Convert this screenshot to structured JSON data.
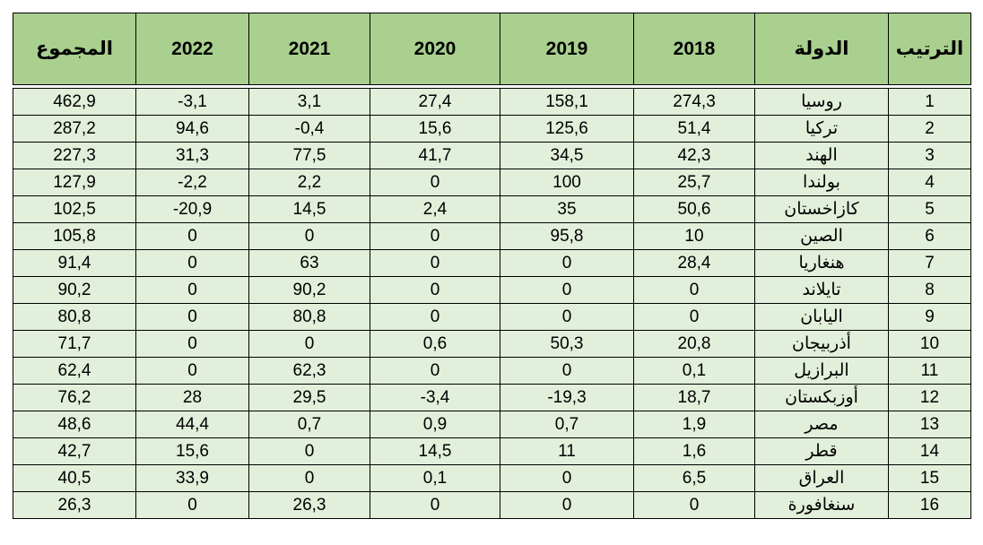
{
  "colors": {
    "page_bg": "#FFFFFF",
    "header_bg": "#A9D08E",
    "row_bg": "#E2EFDA",
    "border": "#000000",
    "text": "#000000"
  },
  "chart_data": {
    "type": "table",
    "direction": "rtl",
    "decimal_separator": ",",
    "columns": [
      {
        "key": "rank",
        "label": "الترتيب"
      },
      {
        "key": "country",
        "label": "الدولة"
      },
      {
        "key": "y2018",
        "label": "2018"
      },
      {
        "key": "y2019",
        "label": "2019"
      },
      {
        "key": "y2020",
        "label": "2020"
      },
      {
        "key": "y2021",
        "label": "2021"
      },
      {
        "key": "y2022",
        "label": "2022"
      },
      {
        "key": "total",
        "label": "المجموع"
      }
    ],
    "rows": [
      {
        "rank": "1",
        "country": "روسيا",
        "y2018": "274,3",
        "y2019": "158,1",
        "y2020": "27,4",
        "y2021": "3,1",
        "y2022": "-3,1",
        "total": "462,9"
      },
      {
        "rank": "2",
        "country": "تركيا",
        "y2018": "51,4",
        "y2019": "125,6",
        "y2020": "15,6",
        "y2021": "-0,4",
        "y2022": "94,6",
        "total": "287,2"
      },
      {
        "rank": "3",
        "country": "الهند",
        "y2018": "42,3",
        "y2019": "34,5",
        "y2020": "41,7",
        "y2021": "77,5",
        "y2022": "31,3",
        "total": "227,3"
      },
      {
        "rank": "4",
        "country": "بولندا",
        "y2018": "25,7",
        "y2019": "100",
        "y2020": "0",
        "y2021": "2,2",
        "y2022": "-2,2",
        "total": "127,9"
      },
      {
        "rank": "5",
        "country": "كازاخستان",
        "y2018": "50,6",
        "y2019": "35",
        "y2020": "2,4",
        "y2021": "14,5",
        "y2022": "-20,9",
        "total": "102,5"
      },
      {
        "rank": "6",
        "country": "الصين",
        "y2018": "10",
        "y2019": "95,8",
        "y2020": "0",
        "y2021": "0",
        "y2022": "0",
        "total": "105,8"
      },
      {
        "rank": "7",
        "country": "هنغاريا",
        "y2018": "28,4",
        "y2019": "0",
        "y2020": "0",
        "y2021": "63",
        "y2022": "0",
        "total": "91,4"
      },
      {
        "rank": "8",
        "country": "تايلاند",
        "y2018": "0",
        "y2019": "0",
        "y2020": "0",
        "y2021": "90,2",
        "y2022": "0",
        "total": "90,2"
      },
      {
        "rank": "9",
        "country": "اليابان",
        "y2018": "0",
        "y2019": "0",
        "y2020": "0",
        "y2021": "80,8",
        "y2022": "0",
        "total": "80,8"
      },
      {
        "rank": "10",
        "country": "أذربيجان",
        "y2018": "20,8",
        "y2019": "50,3",
        "y2020": "0,6",
        "y2021": "0",
        "y2022": "0",
        "total": "71,7"
      },
      {
        "rank": "11",
        "country": "البرازيل",
        "y2018": "0,1",
        "y2019": "0",
        "y2020": "0",
        "y2021": "62,3",
        "y2022": "0",
        "total": "62,4"
      },
      {
        "rank": "12",
        "country": "أوزبكستان",
        "y2018": "18,7",
        "y2019": "-19,3",
        "y2020": "-3,4",
        "y2021": "29,5",
        "y2022": "28",
        "total": "76,2"
      },
      {
        "rank": "13",
        "country": "مصر",
        "y2018": "1,9",
        "y2019": "0,7",
        "y2020": "0,9",
        "y2021": "0,7",
        "y2022": "44,4",
        "total": "48,6"
      },
      {
        "rank": "14",
        "country": "قطر",
        "y2018": "1,6",
        "y2019": "11",
        "y2020": "14,5",
        "y2021": "0",
        "y2022": "15,6",
        "total": "42,7"
      },
      {
        "rank": "15",
        "country": "العراق",
        "y2018": "6,5",
        "y2019": "0",
        "y2020": "0,1",
        "y2021": "0",
        "y2022": "33,9",
        "total": "40,5"
      },
      {
        "rank": "16",
        "country": "سنغافورة",
        "y2018": "0",
        "y2019": "0",
        "y2020": "0",
        "y2021": "26,3",
        "y2022": "0",
        "total": "26,3"
      }
    ]
  }
}
